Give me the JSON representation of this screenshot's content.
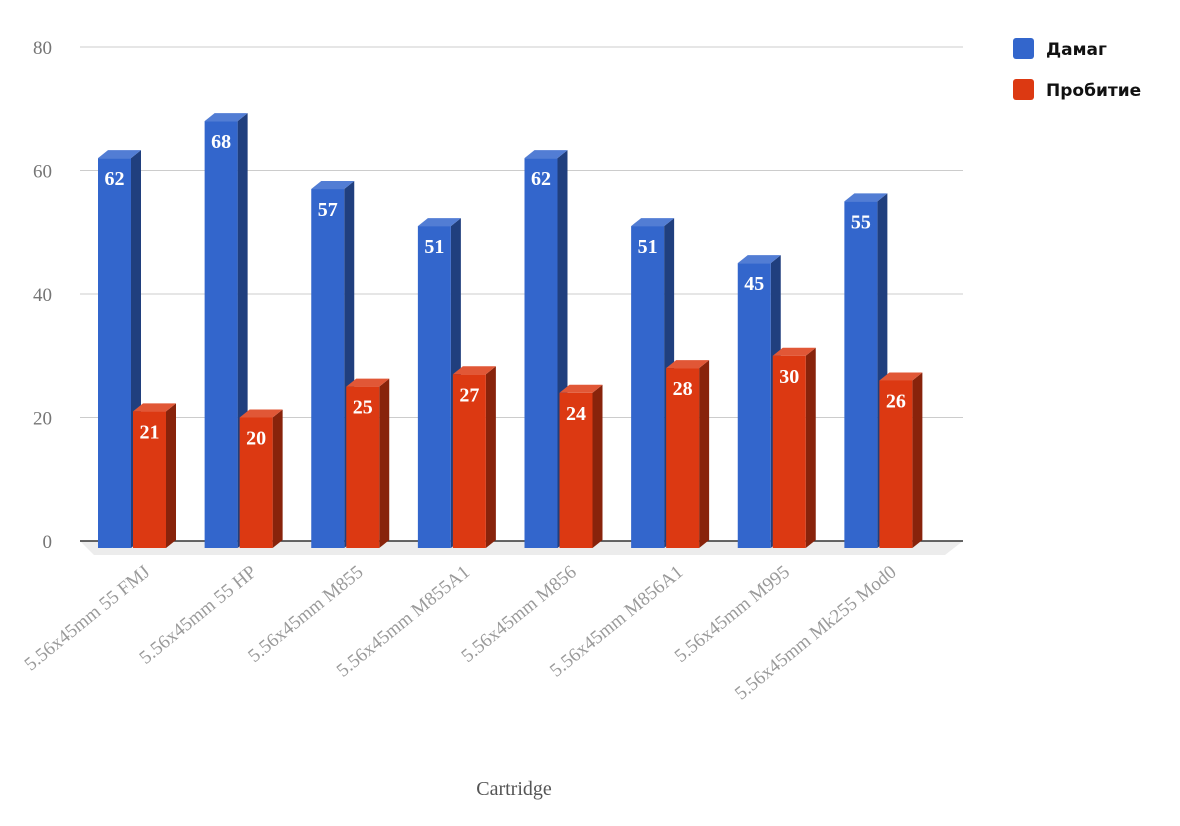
{
  "chart_data": {
    "type": "bar",
    "style": "3d-grouped",
    "categories": [
      "5.56x45mm 55 FMJ",
      "5.56x45mm 55 HP",
      "5.56x45mm M855",
      "5.56x45mm M855A1",
      "5.56x45mm M856",
      "5.56x45mm M856A1",
      "5.56x45mm M995",
      "5.56x45mm Mk255 Mod0"
    ],
    "series": [
      {
        "name": "Дамаг",
        "color": "#3366cc",
        "values": [
          62,
          68,
          57,
          51,
          62,
          51,
          45,
          55
        ]
      },
      {
        "name": "Пробитие",
        "color": "#dc3912",
        "values": [
          21,
          20,
          25,
          27,
          24,
          28,
          30,
          26
        ]
      }
    ],
    "xlabel": "Cartridge",
    "ylabel": "",
    "ylim": [
      0,
      80
    ],
    "yticks": [
      0,
      20,
      40,
      60,
      80
    ],
    "grid": true,
    "legend": "top-right",
    "data_labels": true
  }
}
